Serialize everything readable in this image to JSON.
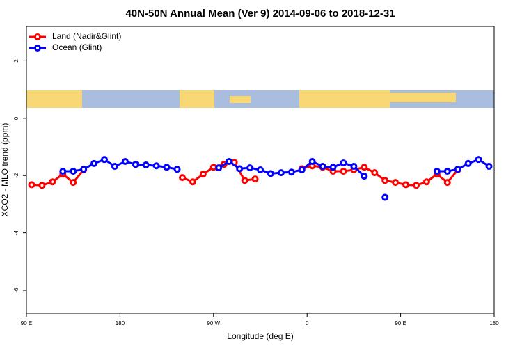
{
  "chart_data": {
    "type": "line",
    "title": "40N-50N Annual Mean (Ver 9)   2014-09-06 to 2018-12-31",
    "xlabel": "Longitude (deg E)",
    "ylabel": "XCO2 - MLO trend (ppm)",
    "xlim": [
      90,
      540
    ],
    "ylim": [
      -6.8,
      3.2
    ],
    "xticks": [
      {
        "value": 90,
        "label": "90 E"
      },
      {
        "value": 180,
        "label": "180"
      },
      {
        "value": 270,
        "label": "90 W"
      },
      {
        "value": 360,
        "label": "0"
      },
      {
        "value": 450,
        "label": "90 E"
      },
      {
        "value": 540,
        "label": "180"
      }
    ],
    "yticks": [
      -6,
      -4,
      -2,
      0,
      2
    ],
    "legend": "upper left",
    "series": [
      {
        "name": "Land (Nadir&Glint)",
        "color": "#ff0000",
        "x": [
          95,
          105,
          115,
          125,
          135,
          145,
          null,
          240,
          250,
          260,
          270,
          280,
          290,
          300,
          310,
          null,
          355,
          365,
          375,
          385,
          395,
          405,
          415,
          425,
          435,
          445,
          455,
          465,
          475,
          485,
          495,
          505
        ],
        "values": [
          -2.32,
          -2.34,
          -2.22,
          -1.95,
          -2.24,
          -1.8,
          null,
          -2.07,
          -2.22,
          -1.95,
          -1.71,
          -1.61,
          -1.54,
          -2.17,
          -2.12,
          null,
          -1.76,
          -1.66,
          -1.71,
          -1.85,
          -1.85,
          -1.8,
          -1.71,
          -1.9,
          -2.17,
          -2.24,
          -2.32,
          -2.34,
          -2.22,
          -1.95,
          -2.24,
          -1.8
        ]
      },
      {
        "name": "Ocean (Glint)",
        "color": "#0000ff",
        "x": [
          125,
          135,
          145,
          155,
          165,
          175,
          185,
          195,
          205,
          215,
          225,
          235,
          null,
          275,
          285,
          295,
          305,
          315,
          325,
          335,
          345,
          355,
          365,
          375,
          385,
          395,
          405,
          415,
          null,
          435,
          null,
          485,
          495,
          505,
          515,
          525,
          535
        ],
        "values": [
          -1.85,
          -1.85,
          -1.78,
          -1.58,
          -1.44,
          -1.68,
          -1.51,
          -1.61,
          -1.63,
          -1.66,
          -1.71,
          -1.78,
          null,
          -1.73,
          -1.51,
          -1.76,
          -1.73,
          -1.8,
          -1.93,
          -1.9,
          -1.88,
          -1.8,
          -1.51,
          -1.68,
          -1.71,
          -1.56,
          -1.68,
          -2.02,
          null,
          -2.76,
          null,
          -1.85,
          -1.85,
          -1.78,
          -1.58,
          -1.44,
          -1.68
        ]
      }
    ]
  }
}
